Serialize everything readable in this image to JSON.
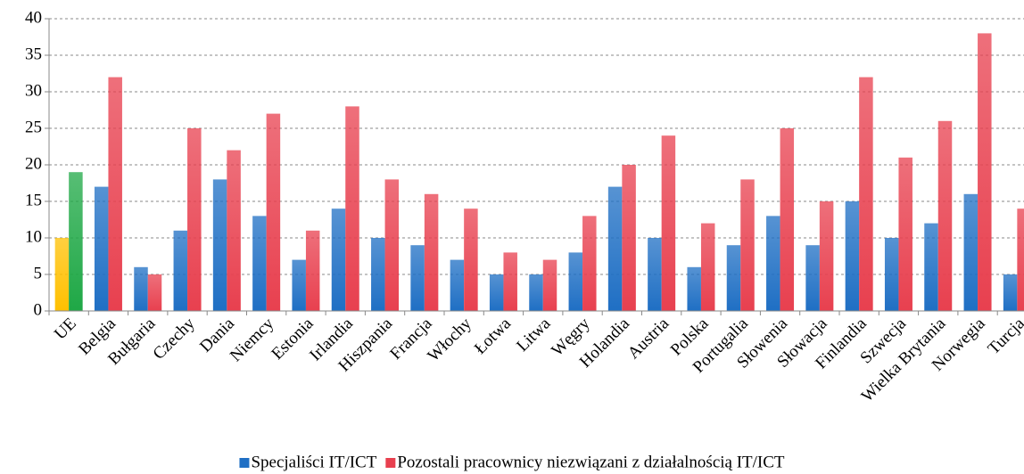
{
  "chart_data": {
    "type": "bar",
    "categories": [
      "UE",
      "Belgia",
      "Bułgaria",
      "Czechy",
      "Dania",
      "Niemcy",
      "Estonia",
      "Irlandia",
      "Hiszpania",
      "Francja",
      "Włochy",
      "Łotwa",
      "Litwa",
      "Węgry",
      "Holandia",
      "Austria",
      "Polska",
      "Portugalia",
      "Słowenia",
      "Słowacja",
      "Finlandia",
      "Szwecja",
      "Wielka Brytania",
      "Norwegia",
      "Turcja"
    ],
    "series": [
      {
        "name": "Specjaliści IT/ICT",
        "color": "#1f6fc4",
        "colors": [
          "#ffc000",
          "#1f6fc4",
          "#1f6fc4",
          "#1f6fc4",
          "#1f6fc4",
          "#1f6fc4",
          "#1f6fc4",
          "#1f6fc4",
          "#1f6fc4",
          "#1f6fc4",
          "#1f6fc4",
          "#1f6fc4",
          "#1f6fc4",
          "#1f6fc4",
          "#1f6fc4",
          "#1f6fc4",
          "#1f6fc4",
          "#1f6fc4",
          "#1f6fc4",
          "#1f6fc4",
          "#1f6fc4",
          "#1f6fc4",
          "#1f6fc4",
          "#1f6fc4",
          "#1f6fc4"
        ],
        "values": [
          10,
          17,
          6,
          11,
          18,
          13,
          7,
          14,
          10,
          9,
          7,
          5,
          5,
          8,
          17,
          10,
          6,
          9,
          13,
          9,
          15,
          10,
          12,
          16,
          5
        ]
      },
      {
        "name": "Pozostali pracownicy niezwiązani z działalnością IT/ICT",
        "color": "#e8404f",
        "colors": [
          "#1fa846",
          "#e8404f",
          "#e8404f",
          "#e8404f",
          "#e8404f",
          "#e8404f",
          "#e8404f",
          "#e8404f",
          "#e8404f",
          "#e8404f",
          "#e8404f",
          "#e8404f",
          "#e8404f",
          "#e8404f",
          "#e8404f",
          "#e8404f",
          "#e8404f",
          "#e8404f",
          "#e8404f",
          "#e8404f",
          "#e8404f",
          "#e8404f",
          "#e8404f",
          "#e8404f",
          "#e8404f"
        ],
        "values": [
          19,
          32,
          5,
          25,
          22,
          27,
          11,
          28,
          18,
          16,
          14,
          8,
          7,
          13,
          20,
          24,
          12,
          18,
          25,
          15,
          32,
          21,
          26,
          38,
          14
        ]
      }
    ],
    "ylim": [
      0,
      40
    ],
    "yticks": [
      0,
      5,
      10,
      15,
      20,
      25,
      30,
      35,
      40
    ],
    "grid": true,
    "legend": "bottom"
  }
}
